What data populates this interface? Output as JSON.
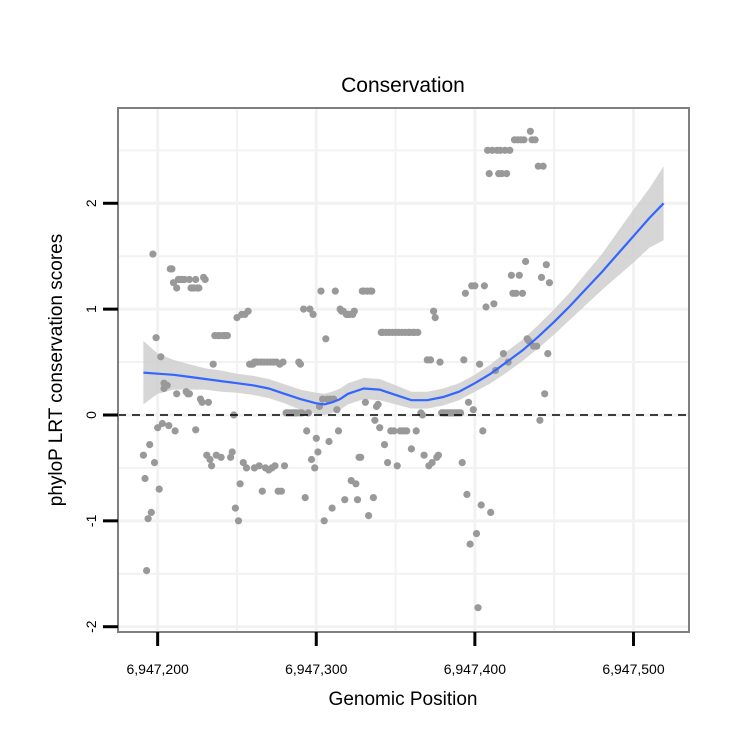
{
  "chart_data": {
    "type": "scatter",
    "title": "Conservation",
    "xlabel": "Genomic Position",
    "ylabel": "phyloP LRT conservation scores",
    "xlim": [
      6947175,
      6947535
    ],
    "ylim": [
      -2.05,
      2.9
    ],
    "x_ticks": [
      6947200,
      6947300,
      6947400,
      6947500
    ],
    "x_tick_labels": [
      "6,947,200",
      "6,947,300",
      "6,947,400",
      "6,947,500"
    ],
    "y_ticks": [
      -2,
      -1,
      0,
      1,
      2
    ],
    "y_tick_labels": [
      "-2",
      "-1",
      "0",
      "1",
      "2"
    ],
    "grid": true,
    "reference_line": {
      "y": 0,
      "style": "dashed"
    },
    "colors": {
      "points": "#999999",
      "smooth": "#3366ff",
      "band": "#cccccc",
      "border": "#7f7f7f"
    },
    "points": [
      [
        6947191,
        -0.38
      ],
      [
        6947192,
        -0.6
      ],
      [
        6947193,
        -1.47
      ],
      [
        6947194,
        -0.98
      ],
      [
        6947195,
        -0.28
      ],
      [
        6947196,
        -0.92
      ],
      [
        6947197,
        1.52
      ],
      [
        6947198,
        -0.45
      ],
      [
        6947199,
        0.73
      ],
      [
        6947200,
        -0.12
      ],
      [
        6947201,
        -0.7
      ],
      [
        6947202,
        0.55
      ],
      [
        6947203,
        -0.08
      ],
      [
        6947204,
        0.25
      ],
      [
        6947204,
        0.3
      ],
      [
        6947205,
        0.28
      ],
      [
        6947206,
        0.28
      ],
      [
        6947207,
        -0.1
      ],
      [
        6947208,
        1.38
      ],
      [
        6947209,
        1.38
      ],
      [
        6947210,
        1.25
      ],
      [
        6947211,
        -0.15
      ],
      [
        6947212,
        1.2
      ],
      [
        6947212,
        0.2
      ],
      [
        6947213,
        1.28
      ],
      [
        6947214,
        1.28
      ],
      [
        6947215,
        1.28
      ],
      [
        6947216,
        1.28
      ],
      [
        6947217,
        1.28
      ],
      [
        6947218,
        0.22
      ],
      [
        6947219,
        0.2
      ],
      [
        6947220,
        0.2
      ],
      [
        6947220,
        1.28
      ],
      [
        6947221,
        1.2
      ],
      [
        6947222,
        1.2
      ],
      [
        6947223,
        1.2
      ],
      [
        6947224,
        1.28
      ],
      [
        6947224,
        -0.14
      ],
      [
        6947225,
        1.2
      ],
      [
        6947226,
        1.2
      ],
      [
        6947227,
        0.15
      ],
      [
        6947228,
        0.12
      ],
      [
        6947229,
        1.3
      ],
      [
        6947230,
        1.28
      ],
      [
        6947231,
        -0.38
      ],
      [
        6947232,
        0.12
      ],
      [
        6947233,
        -0.42
      ],
      [
        6947234,
        -0.48
      ],
      [
        6947235,
        0.48
      ],
      [
        6947236,
        0.75
      ],
      [
        6947237,
        -0.38
      ],
      [
        6947238,
        0.75
      ],
      [
        6947239,
        0.75
      ],
      [
        6947240,
        -0.4
      ],
      [
        6947241,
        0.75
      ],
      [
        6947242,
        0.75
      ],
      [
        6947243,
        0.75
      ],
      [
        6947244,
        0.75
      ],
      [
        6947246,
        -0.4
      ],
      [
        6947247,
        -0.35
      ],
      [
        6947248,
        0.0
      ],
      [
        6947249,
        -0.88
      ],
      [
        6947250,
        0.92
      ],
      [
        6947251,
        -1.0
      ],
      [
        6947252,
        -0.65
      ],
      [
        6947253,
        0.95
      ],
      [
        6947254,
        -0.45
      ],
      [
        6947255,
        0.95
      ],
      [
        6947256,
        -0.5
      ],
      [
        6947257,
        0.98
      ],
      [
        6947258,
        0.48
      ],
      [
        6947259,
        0.48
      ],
      [
        6947260,
        0.48
      ],
      [
        6947261,
        0.5
      ],
      [
        6947261,
        -0.5
      ],
      [
        6947262,
        0.5
      ],
      [
        6947263,
        0.5
      ],
      [
        6947264,
        -0.48
      ],
      [
        6947265,
        0.5
      ],
      [
        6947266,
        -0.72
      ],
      [
        6947267,
        0.5
      ],
      [
        6947268,
        -0.5
      ],
      [
        6947269,
        0.5
      ],
      [
        6947270,
        -0.52
      ],
      [
        6947271,
        0.5
      ],
      [
        6947272,
        -0.5
      ],
      [
        6947273,
        0.5
      ],
      [
        6947274,
        -0.48
      ],
      [
        6947275,
        0.5
      ],
      [
        6947276,
        -0.72
      ],
      [
        6947277,
        0.48
      ],
      [
        6947278,
        -0.72
      ],
      [
        6947279,
        0.5
      ],
      [
        6947280,
        -0.48
      ],
      [
        6947281,
        0.02
      ],
      [
        6947282,
        0.02
      ],
      [
        6947283,
        0.02
      ],
      [
        6947284,
        0.02
      ],
      [
        6947285,
        0.02
      ],
      [
        6947286,
        0.02
      ],
      [
        6947287,
        0.02
      ],
      [
        6947288,
        0.02
      ],
      [
        6947289,
        0.5
      ],
      [
        6947290,
        0.48
      ],
      [
        6947290,
        0.02
      ],
      [
        6947291,
        0.02
      ],
      [
        6947292,
        1.0
      ],
      [
        6947293,
        -0.78
      ],
      [
        6947294,
        -0.15
      ],
      [
        6947295,
        0.02
      ],
      [
        6947296,
        1.0
      ],
      [
        6947297,
        -0.42
      ],
      [
        6947298,
        0.95
      ],
      [
        6947299,
        -0.5
      ],
      [
        6947300,
        -0.22
      ],
      [
        6947301,
        -0.35
      ],
      [
        6947302,
        0.08
      ],
      [
        6947303,
        1.17
      ],
      [
        6947304,
        0.15
      ],
      [
        6947305,
        -1.0
      ],
      [
        6947306,
        0.72
      ],
      [
        6947307,
        0.15
      ],
      [
        6947308,
        -0.25
      ],
      [
        6947309,
        0.15
      ],
      [
        6947310,
        -0.88
      ],
      [
        6947311,
        0.15
      ],
      [
        6947312,
        1.17
      ],
      [
        6947313,
        0.05
      ],
      [
        6947314,
        -0.15
      ],
      [
        6947315,
        1.0
      ],
      [
        6947316,
        0.98
      ],
      [
        6947317,
        0.98
      ],
      [
        6947318,
        -0.8
      ],
      [
        6947319,
        0.95
      ],
      [
        6947320,
        0.95
      ],
      [
        6947321,
        0.95
      ],
      [
        6947322,
        -0.62
      ],
      [
        6947323,
        0.95
      ],
      [
        6947324,
        0.98
      ],
      [
        6947325,
        -0.65
      ],
      [
        6947326,
        -0.8
      ],
      [
        6947327,
        -0.4
      ],
      [
        6947328,
        -0.4
      ],
      [
        6947329,
        1.17
      ],
      [
        6947330,
        1.17
      ],
      [
        6947331,
        0.12
      ],
      [
        6947332,
        1.17
      ],
      [
        6947333,
        -0.95
      ],
      [
        6947334,
        1.17
      ],
      [
        6947335,
        1.17
      ],
      [
        6947336,
        -0.78
      ],
      [
        6947337,
        -0.05
      ],
      [
        6947338,
        0.08
      ],
      [
        6947339,
        0.1
      ],
      [
        6947340,
        -0.12
      ],
      [
        6947341,
        0.78
      ],
      [
        6947342,
        0.78
      ],
      [
        6947343,
        -0.28
      ],
      [
        6947344,
        0.78
      ],
      [
        6947345,
        -0.45
      ],
      [
        6947346,
        0.78
      ],
      [
        6947347,
        -0.15
      ],
      [
        6947348,
        0.78
      ],
      [
        6947349,
        -0.15
      ],
      [
        6947350,
        0.78
      ],
      [
        6947351,
        -0.48
      ],
      [
        6947352,
        0.78
      ],
      [
        6947353,
        -0.15
      ],
      [
        6947354,
        0.78
      ],
      [
        6947355,
        -0.15
      ],
      [
        6947356,
        0.78
      ],
      [
        6947357,
        -0.15
      ],
      [
        6947358,
        0.78
      ],
      [
        6947359,
        0.78
      ],
      [
        6947360,
        -0.32
      ],
      [
        6947361,
        0.78
      ],
      [
        6947362,
        0.78
      ],
      [
        6947363,
        -0.15
      ],
      [
        6947364,
        0.78
      ],
      [
        6947366,
        0.02
      ],
      [
        6947367,
        0.0
      ],
      [
        6947368,
        -0.38
      ],
      [
        6947370,
        0.52
      ],
      [
        6947371,
        -0.48
      ],
      [
        6947372,
        0.52
      ],
      [
        6947373,
        -0.45
      ],
      [
        6947374,
        0.98
      ],
      [
        6947375,
        0.92
      ],
      [
        6947376,
        -0.4
      ],
      [
        6947377,
        -0.38
      ],
      [
        6947378,
        0.5
      ],
      [
        6947379,
        0.02
      ],
      [
        6947380,
        0.02
      ],
      [
        6947381,
        0.02
      ],
      [
        6947382,
        0.02
      ],
      [
        6947383,
        0.02
      ],
      [
        6947384,
        0.02
      ],
      [
        6947385,
        0.02
      ],
      [
        6947386,
        0.02
      ],
      [
        6947387,
        0.02
      ],
      [
        6947388,
        0.02
      ],
      [
        6947389,
        0.02
      ],
      [
        6947390,
        0.02
      ],
      [
        6947391,
        0.02
      ],
      [
        6947392,
        -0.45
      ],
      [
        6947393,
        0.52
      ],
      [
        6947394,
        1.15
      ],
      [
        6947395,
        -0.75
      ],
      [
        6947396,
        0.12
      ],
      [
        6947397,
        -1.22
      ],
      [
        6947398,
        1.22
      ],
      [
        6947399,
        0.05
      ],
      [
        6947400,
        1.22
      ],
      [
        6947401,
        -1.12
      ],
      [
        6947402,
        -1.82
      ],
      [
        6947403,
        0.48
      ],
      [
        6947404,
        -0.85
      ],
      [
        6947405,
        -0.15
      ],
      [
        6947406,
        1.22
      ],
      [
        6947407,
        1.02
      ],
      [
        6947408,
        2.5
      ],
      [
        6947409,
        2.28
      ],
      [
        6947410,
        -0.92
      ],
      [
        6947411,
        2.5
      ],
      [
        6947412,
        1.05
      ],
      [
        6947413,
        0.42
      ],
      [
        6947414,
        2.5
      ],
      [
        6947415,
        2.28
      ],
      [
        6947416,
        2.5
      ],
      [
        6947417,
        2.28
      ],
      [
        6947418,
        0.58
      ],
      [
        6947419,
        2.5
      ],
      [
        6947420,
        2.28
      ],
      [
        6947421,
        0.5
      ],
      [
        6947422,
        2.5
      ],
      [
        6947423,
        1.32
      ],
      [
        6947424,
        1.15
      ],
      [
        6947425,
        2.6
      ],
      [
        6947426,
        1.15
      ],
      [
        6947427,
        2.6
      ],
      [
        6947428,
        1.32
      ],
      [
        6947429,
        2.6
      ],
      [
        6947430,
        1.15
      ],
      [
        6947431,
        2.6
      ],
      [
        6947432,
        1.45
      ],
      [
        6947433,
        0.72
      ],
      [
        6947434,
        0.7
      ],
      [
        6947435,
        2.68
      ],
      [
        6947436,
        2.6
      ],
      [
        6947437,
        0.65
      ],
      [
        6947438,
        2.6
      ],
      [
        6947439,
        0.65
      ],
      [
        6947440,
        2.35
      ],
      [
        6947441,
        -0.05
      ],
      [
        6947442,
        1.3
      ],
      [
        6947443,
        2.35
      ],
      [
        6947444,
        0.2
      ],
      [
        6947445,
        1.42
      ],
      [
        6947446,
        0.58
      ],
      [
        6947447,
        1.25
      ]
    ],
    "smooth": {
      "x": [
        6947191,
        6947200,
        6947210,
        6947220,
        6947230,
        6947240,
        6947250,
        6947260,
        6947270,
        6947280,
        6947290,
        6947300,
        6947305,
        6947310,
        6947315,
        6947320,
        6947330,
        6947340,
        6947350,
        6947360,
        6947370,
        6947380,
        6947390,
        6947400,
        6947410,
        6947420,
        6947430,
        6947440,
        6947450,
        6947460,
        6947470,
        6947480,
        6947490,
        6947500,
        6947510,
        6947519
      ],
      "y": [
        0.4,
        0.39,
        0.38,
        0.36,
        0.34,
        0.32,
        0.3,
        0.28,
        0.25,
        0.2,
        0.15,
        0.11,
        0.1,
        0.12,
        0.15,
        0.2,
        0.25,
        0.24,
        0.19,
        0.14,
        0.14,
        0.17,
        0.22,
        0.3,
        0.39,
        0.5,
        0.61,
        0.74,
        0.88,
        1.03,
        1.19,
        1.35,
        1.52,
        1.69,
        1.86,
        2.0
      ],
      "lower": [
        0.1,
        0.2,
        0.24,
        0.24,
        0.24,
        0.22,
        0.21,
        0.19,
        0.16,
        0.11,
        0.05,
        0.01,
        0.0,
        0.02,
        0.05,
        0.1,
        0.15,
        0.14,
        0.1,
        0.06,
        0.06,
        0.09,
        0.14,
        0.22,
        0.3,
        0.4,
        0.51,
        0.63,
        0.76,
        0.9,
        1.04,
        1.18,
        1.31,
        1.44,
        1.58,
        1.65
      ],
      "upper": [
        0.7,
        0.58,
        0.52,
        0.48,
        0.44,
        0.42,
        0.39,
        0.37,
        0.34,
        0.29,
        0.24,
        0.21,
        0.2,
        0.22,
        0.25,
        0.3,
        0.35,
        0.34,
        0.28,
        0.22,
        0.22,
        0.25,
        0.3,
        0.38,
        0.48,
        0.6,
        0.71,
        0.85,
        1.0,
        1.16,
        1.34,
        1.52,
        1.73,
        1.94,
        2.14,
        2.35
      ]
    }
  }
}
